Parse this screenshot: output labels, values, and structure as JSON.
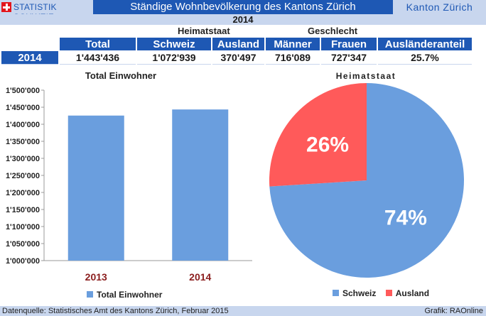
{
  "header": {
    "logo_text": "STATISTIK SCHWEIZ",
    "title": "Ständige Wohnbevölkerung des Kantons Zürich",
    "canton": "Kanton Zürich"
  },
  "year_banner": "2014",
  "table": {
    "group_labels": [
      "Heimatstaat",
      "Geschlecht"
    ],
    "headers": [
      "Total",
      "Schweiz",
      "Ausland",
      "Männer",
      "Frauen",
      "Ausländeranteil"
    ],
    "row": {
      "year": "2014",
      "values": [
        "1'443'436",
        "1'072'939",
        "370'497",
        "716'089",
        "727'347",
        "25.7%"
      ]
    }
  },
  "chart_data": [
    {
      "type": "bar",
      "title": "Total Einwohner",
      "categories": [
        "2013",
        "2014"
      ],
      "series": [
        {
          "name": "Total Einwohner",
          "values": [
            1425538,
            1443436
          ]
        }
      ],
      "ylim": [
        1000000,
        1500000
      ],
      "yticks": [
        "1'000'000",
        "1'050'000",
        "1'100'000",
        "1'150'000",
        "1'200'000",
        "1'250'000",
        "1'300'000",
        "1'350'000",
        "1'400'000",
        "1'450'000",
        "1'500'000"
      ],
      "grid": false,
      "legend": "bottom",
      "color": "#6a9ede",
      "category_label_color": "#8b1d1d"
    },
    {
      "type": "pie",
      "title": "Heimatstaat",
      "labels": [
        "Schweiz",
        "Ausland"
      ],
      "values": [
        74,
        26
      ],
      "value_labels": [
        "74%",
        "26%"
      ],
      "colors": [
        "#6a9ede",
        "#ff5a5a"
      ],
      "legend": "bottom"
    }
  ],
  "footer": {
    "source": "Datenquelle: Statistisches Amt des Kantons Zürich, Februar 2015",
    "credit": "Grafik: RAOnline"
  }
}
